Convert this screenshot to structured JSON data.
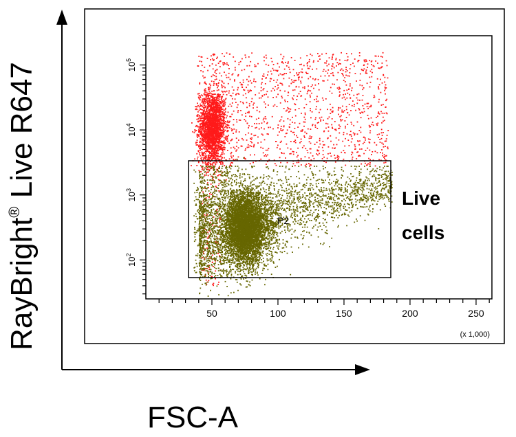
{
  "chart_data": {
    "type": "scatter",
    "xlabel": "FSC-A",
    "ylabel": "RayBright",
    "ylabel_mark": "®",
    "ylabel_suffix": " Live R647",
    "x_multiplier": "(x 1,000)",
    "xlim": [
      0,
      262
    ],
    "ylim_log10": [
      1.4,
      5.45
    ],
    "yscale": "log",
    "x_ticks": [
      50,
      100,
      150,
      200,
      250
    ],
    "x_tick_labels": [
      "50",
      "100",
      "150",
      "200",
      "250"
    ],
    "y_ticks": [
      2,
      3,
      4,
      5
    ],
    "y_tick_base": "10",
    "y_tick_exponents": [
      "2",
      "3",
      "4",
      "5"
    ],
    "gate": {
      "name": "P2",
      "x_range": [
        35,
        187
      ],
      "y_log10_range": [
        1.65,
        3.47
      ]
    },
    "annotation": {
      "line1": "Live",
      "line2": "cells"
    },
    "colors": {
      "dead_population": "#ff1a1a",
      "live_population": "#666600",
      "gate": "#000000",
      "axis": "#000000"
    },
    "series": [
      {
        "population": "dead",
        "x_center": 50,
        "y_log10_center": 4.1,
        "x_spread_max": 185,
        "y_log10_range": [
          3.4,
          5.3
        ]
      },
      {
        "population": "live",
        "x_center": 72,
        "y_log10_center": 2.5,
        "x_spread_max": 185,
        "y_log10_range": [
          1.7,
          3.45
        ]
      }
    ]
  }
}
